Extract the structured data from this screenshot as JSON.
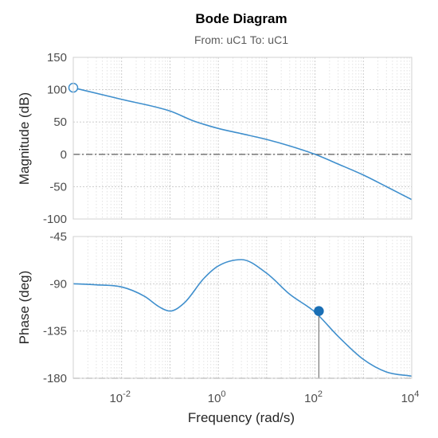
{
  "chart_data": {
    "type": "line",
    "title": "Bode Diagram",
    "subtitle": "From: uC1  To: uC1",
    "xlabel": "Frequency  (rad/s)",
    "x_scale": "log",
    "xlim": [
      0.001,
      10000
    ],
    "x_ticks": [
      {
        "value": 0.01,
        "base": "10",
        "exp": "-2"
      },
      {
        "value": 1,
        "base": "10",
        "exp": "0"
      },
      {
        "value": 100,
        "base": "10",
        "exp": "2"
      },
      {
        "value": 10000,
        "base": "10",
        "exp": "4"
      }
    ],
    "grid": true,
    "line_color": "#3f8fcd",
    "reference_line_color": "#6b6b6b",
    "panels": [
      {
        "ylabel": "Magnitude (dB)",
        "ylim": [
          -100,
          150
        ],
        "y_ticks": [
          "150",
          "100",
          "50",
          "0",
          "-50",
          "-100"
        ],
        "y_tick_values": [
          150,
          100,
          50,
          0,
          -50,
          -100
        ],
        "reference_line_y": 0,
        "x": [
          0.001,
          0.01,
          0.1,
          0.3,
          1,
          3,
          10,
          30,
          100,
          300,
          1000,
          3000,
          10000
        ],
        "y": [
          103,
          85,
          67,
          52,
          40,
          32,
          23,
          13,
          0,
          -15,
          -32,
          -50,
          -70
        ],
        "marker": {
          "x": 0.001,
          "y": 103,
          "style": "open"
        }
      },
      {
        "ylabel": "Phase (deg)",
        "ylim": [
          -180,
          -45
        ],
        "y_ticks": [
          "-45",
          "-90",
          "-135",
          "-180"
        ],
        "y_tick_values": [
          -45,
          -90,
          -135,
          -180
        ],
        "reference_line_y": -180,
        "x": [
          0.001,
          0.003,
          0.01,
          0.03,
          0.06,
          0.1,
          0.2,
          0.5,
          1,
          3,
          10,
          30,
          100,
          300,
          1000,
          3000,
          10000
        ],
        "y": [
          -90,
          -91,
          -93,
          -102,
          -112,
          -116,
          -108,
          -85,
          -73,
          -67,
          -80,
          -100,
          -117,
          -140,
          -162,
          -174,
          -178
        ],
        "marker": {
          "x": 120,
          "y": -116,
          "style": "filled",
          "drop_line": true
        }
      }
    ]
  }
}
